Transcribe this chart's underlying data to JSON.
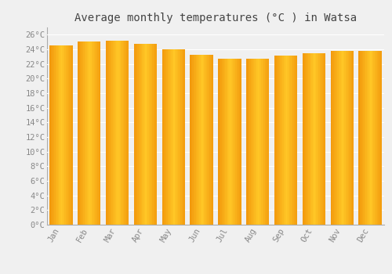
{
  "title": "Average monthly temperatures (°C ) in Watsa",
  "months": [
    "Jan",
    "Feb",
    "Mar",
    "Apr",
    "May",
    "Jun",
    "Jul",
    "Aug",
    "Sep",
    "Oct",
    "Nov",
    "Dec"
  ],
  "temperatures": [
    24.5,
    25.1,
    25.2,
    24.7,
    24.0,
    23.3,
    22.7,
    22.7,
    23.1,
    23.5,
    23.8,
    23.8
  ],
  "bar_color": "#FFAA00",
  "bar_edge_color": "#E08000",
  "ylim": [
    0,
    27
  ],
  "yticks": [
    0,
    2,
    4,
    6,
    8,
    10,
    12,
    14,
    16,
    18,
    20,
    22,
    24,
    26
  ],
  "ytick_labels": [
    "0°C",
    "2°C",
    "4°C",
    "6°C",
    "8°C",
    "10°C",
    "12°C",
    "14°C",
    "16°C",
    "18°C",
    "20°C",
    "22°C",
    "24°C",
    "26°C"
  ],
  "background_color": "#f0f0f0",
  "plot_bg_color": "#f0f0f0",
  "grid_color": "#ffffff",
  "title_fontsize": 10,
  "tick_fontsize": 7.5,
  "tick_color": "#888888",
  "font_family": "monospace",
  "bar_width": 0.82
}
